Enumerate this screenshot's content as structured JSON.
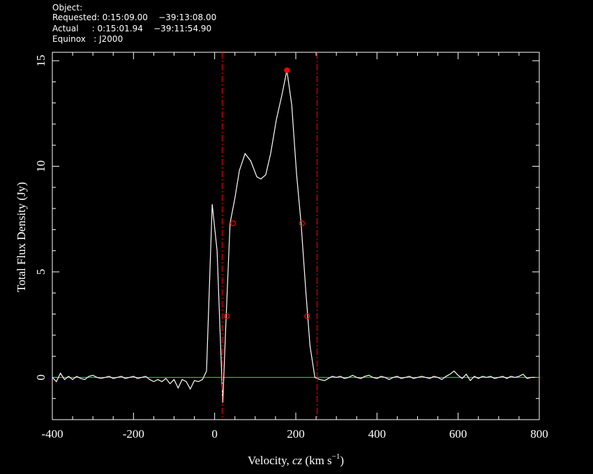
{
  "chart_data": {
    "type": "line",
    "header": [
      "Object:",
      "Requested: 0:15:09.00    −39:13:08.00",
      "Actual     : 0:15:01.94    −39:11:54.90",
      "Equinox   : J2000"
    ],
    "xlabel": [
      "Velocity, ",
      "cz",
      " (km s",
      "−1",
      ")"
    ],
    "ylabel": "Total Flux Density (Jy)",
    "xlim": [
      -400,
      800
    ],
    "ylim": [
      -2,
      15.4
    ],
    "xticks": [
      -400,
      -200,
      0,
      200,
      400,
      600,
      800
    ],
    "yticks": [
      0,
      5,
      10,
      15
    ],
    "xminor_ticks": [
      -350,
      -300,
      -250,
      -150,
      -100,
      -50,
      50,
      100,
      150,
      250,
      300,
      350,
      450,
      500,
      550,
      650,
      700,
      750
    ],
    "yminor_ticks": [
      -2,
      -1,
      1,
      2,
      3,
      4,
      6,
      7,
      8,
      9,
      11,
      12,
      13,
      14
    ],
    "series": [
      {
        "color": "#ffffff",
        "x": [
          -400,
          -390,
          -380,
          -370,
          -360,
          -350,
          -340,
          -330,
          -320,
          -310,
          -300,
          -290,
          -280,
          -270,
          -260,
          -250,
          -240,
          -230,
          -220,
          -210,
          -200,
          -190,
          -180,
          -170,
          -160,
          -150,
          -140,
          -130,
          -120,
          -110,
          -100,
          -90,
          -80,
          -70,
          -60,
          -50,
          -40,
          -30,
          -20,
          -6,
          6,
          15,
          20,
          28,
          38,
          50,
          61,
          75,
          89,
          104,
          114,
          126,
          138,
          152,
          166,
          178,
          190,
          202,
          213,
          225,
          235,
          247,
          259,
          271,
          280,
          290,
          300,
          310,
          320,
          330,
          340,
          350,
          360,
          370,
          380,
          390,
          400,
          410,
          420,
          430,
          440,
          450,
          460,
          470,
          480,
          490,
          500,
          510,
          520,
          530,
          540,
          550,
          560,
          570,
          580,
          590,
          600,
          610,
          620,
          630,
          640,
          650,
          660,
          670,
          680,
          690,
          700,
          710,
          720,
          730,
          740,
          750,
          760,
          770,
          780,
          790
        ],
        "values": [
          0,
          -0.2,
          0.2,
          -0.1,
          0.05,
          -0.1,
          0.05,
          -0.05,
          -0.1,
          0.05,
          0.1,
          0,
          -0.05,
          0,
          0.05,
          -0.05,
          0,
          0.05,
          -0.05,
          0,
          0.05,
          -0.05,
          0,
          0.05,
          -0.1,
          -0.2,
          -0.1,
          -0.2,
          -0.05,
          -0.3,
          -0.1,
          -0.5,
          -0.1,
          -0.2,
          -0.55,
          -0.15,
          -0.2,
          -0.1,
          0.3,
          8.2,
          6.0,
          1.35,
          -1.2,
          2.7,
          7.3,
          8.5,
          9.8,
          10.6,
          10.25,
          9.5,
          9.4,
          9.6,
          10.6,
          12.2,
          13.4,
          14.55,
          12.9,
          9.6,
          7.3,
          4.0,
          1.5,
          0,
          -0.1,
          -0.15,
          -0.05,
          0.05,
          0,
          0.05,
          -0.05,
          0,
          0.1,
          0,
          -0.05,
          0.05,
          0.1,
          0,
          -0.05,
          0.05,
          0,
          -0.1,
          0,
          0.05,
          -0.05,
          0,
          0.05,
          -0.05,
          0,
          0.05,
          0,
          -0.05,
          0.05,
          0,
          -0.1,
          0.05,
          0.15,
          0.3,
          0.1,
          -0.05,
          0.15,
          -0.15,
          0.05,
          -0.05,
          0.05,
          0,
          0.05,
          -0.05,
          0,
          0.05,
          -0.05,
          0.05,
          0,
          0.05,
          0.15,
          -0.05,
          0,
          0
        ]
      }
    ],
    "baseline": {
      "value": 0,
      "color": "#00ff00"
    },
    "vlines": {
      "x": [
        18.5,
        252.5
      ],
      "color": "#ff0000"
    },
    "peak": {
      "x": 178,
      "y": 14.55,
      "color": "#ff0000"
    },
    "width_points": {
      "x": [
        30,
        45,
        215,
        228
      ],
      "y": [
        2.9,
        7.3,
        7.3,
        2.9
      ],
      "color": "#ff0000"
    }
  }
}
